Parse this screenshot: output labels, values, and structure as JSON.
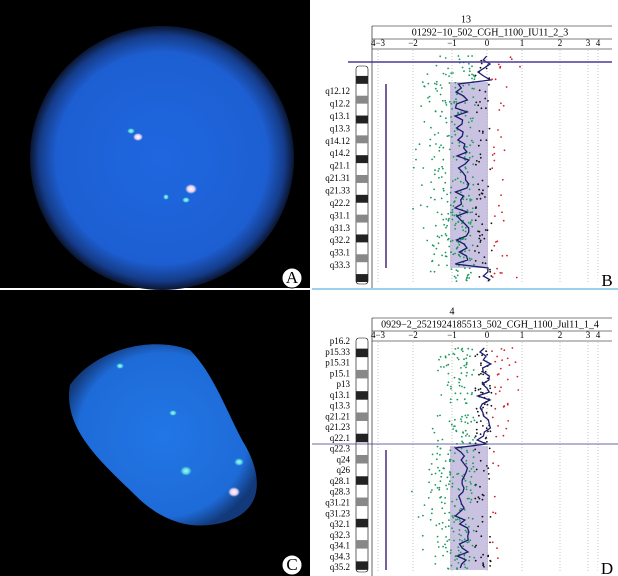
{
  "panels": [
    {
      "label": "A"
    },
    {
      "label": "B",
      "chromosome": "13",
      "title": "01292−10_502_CGH_1100_IU11_2_3",
      "axis_labels": [
        "4−3",
        "−2",
        "−1",
        "0",
        "1",
        "2",
        "3",
        "4"
      ],
      "bands": [
        "q12.12",
        "q12.2",
        "q13.1",
        "q13.3",
        "q14.12",
        "q14.2",
        "q21.1",
        "q21.31",
        "q21.33",
        "q22.2",
        "q31.1",
        "q31.3",
        "q32.2",
        "q33.1",
        "q33.3"
      ]
    },
    {
      "label": "C"
    },
    {
      "label": "D",
      "chromosome": "4",
      "title": "0929−2_2521924185513_502_CGH_1100_Jul11_1_4",
      "axis_labels": [
        "4−3",
        "−2",
        "−1",
        "0",
        "1",
        "2",
        "3",
        "4"
      ],
      "bands": [
        "p16.2",
        "p15.33",
        "p15.31",
        "p15.1",
        "p13",
        "q13.1",
        "q13.3",
        "q21.21",
        "q21.23",
        "q22.1",
        "q22.3",
        "q24",
        "q26",
        "q28.1",
        "q28.3",
        "q31.21",
        "q31.23",
        "q32.1",
        "q32.3",
        "q34.1",
        "q34.3",
        "q35.2"
      ]
    }
  ]
}
